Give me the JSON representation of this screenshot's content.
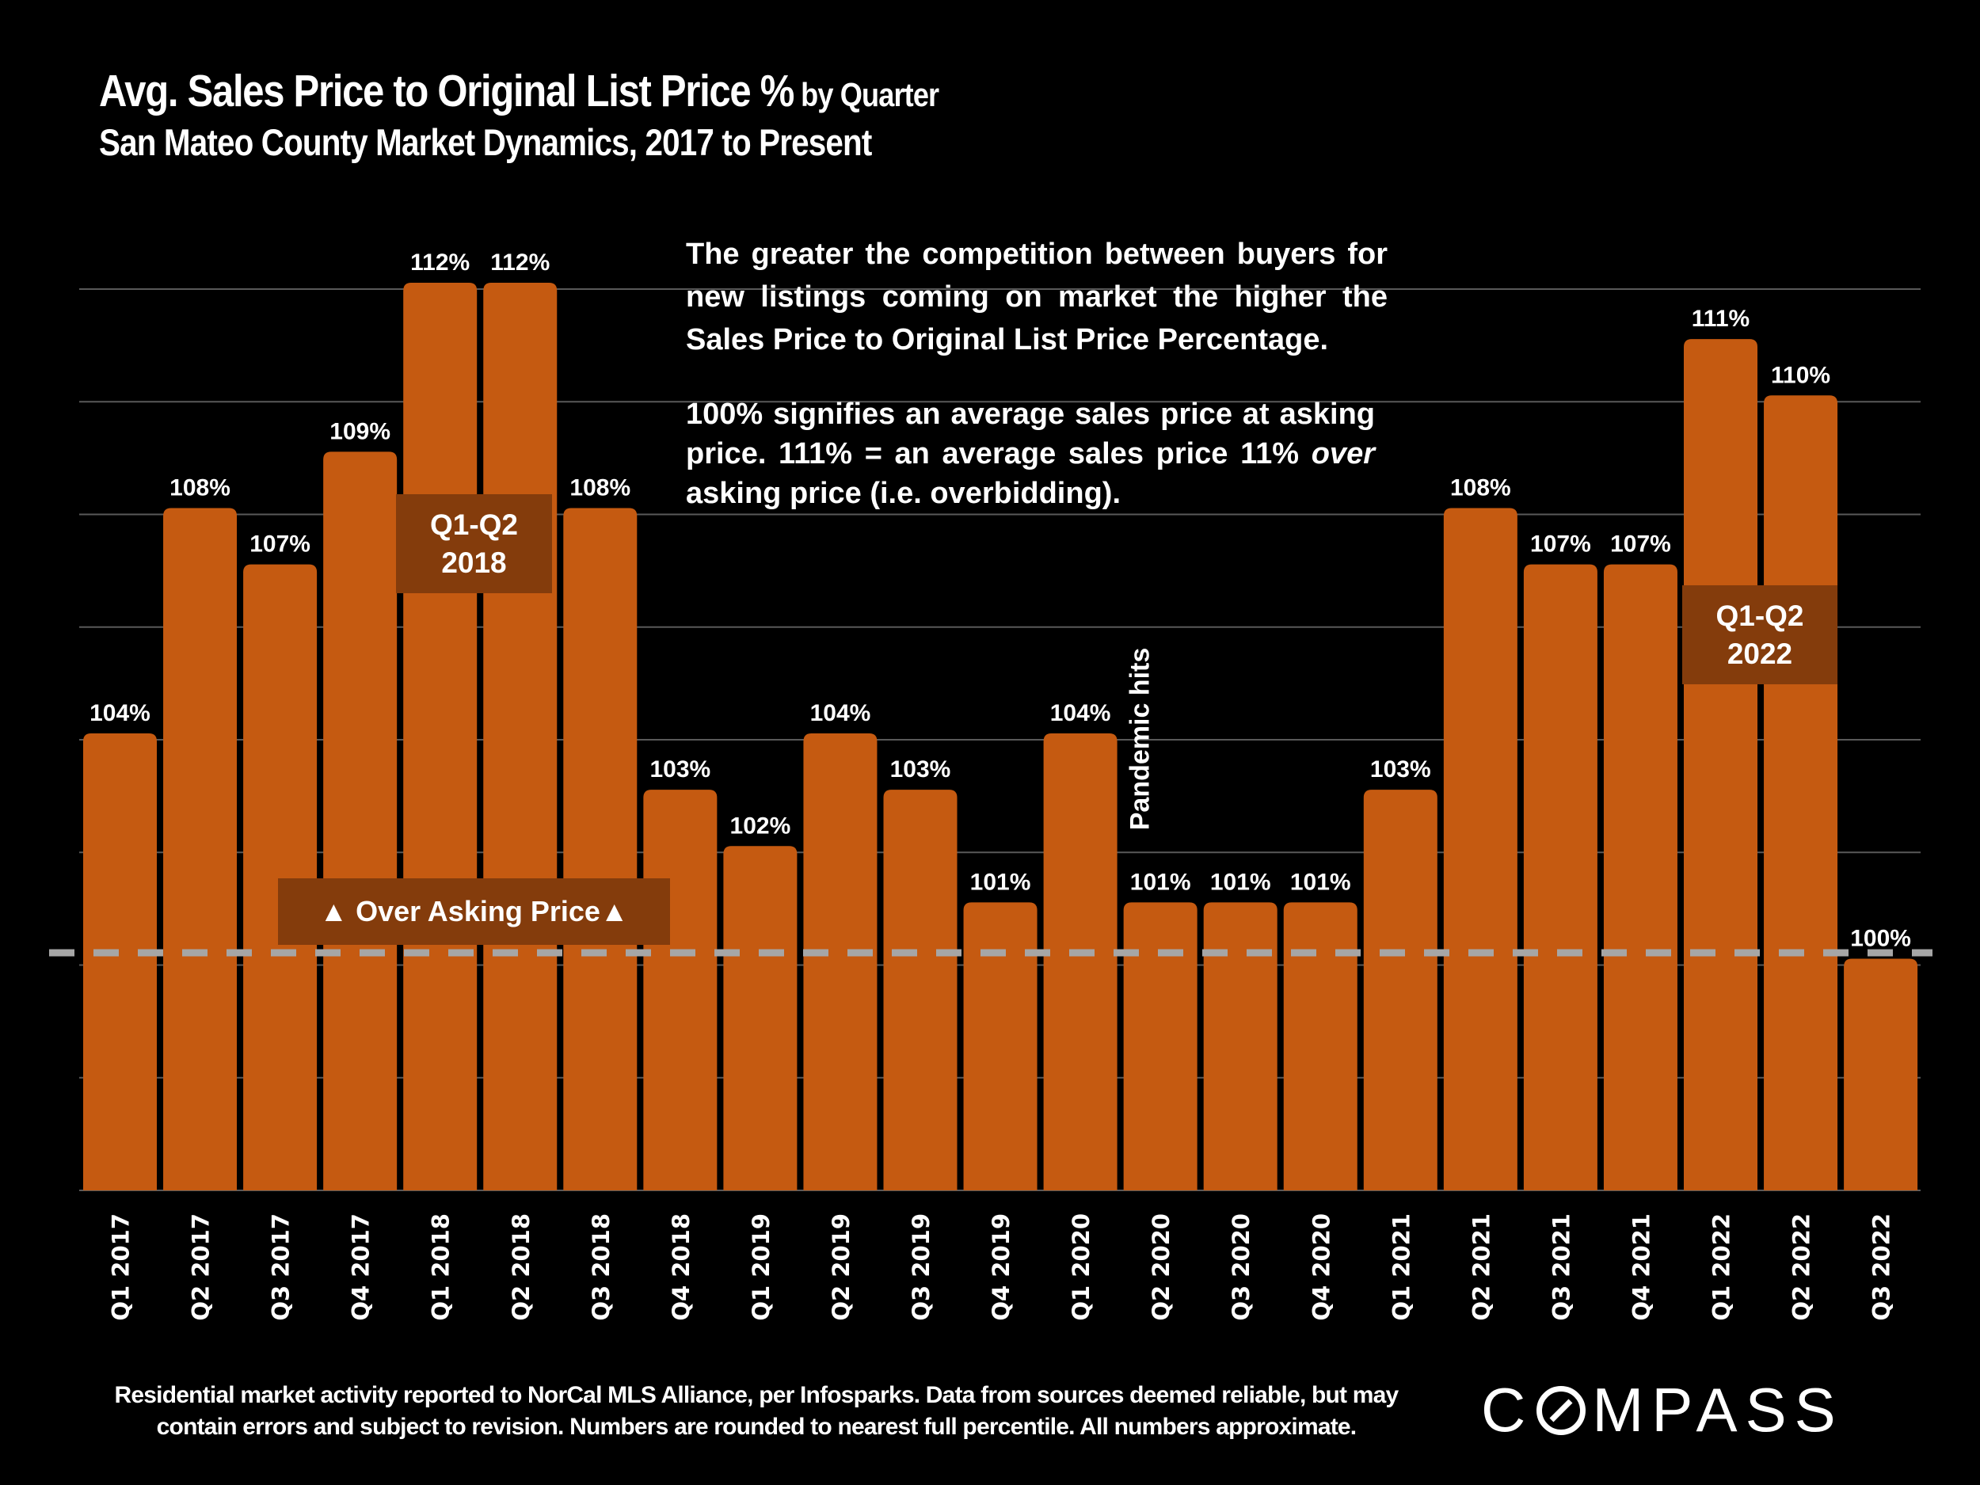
{
  "header": {
    "title_main": "Avg. Sales Price to Original List Price %",
    "title_suffix": " by Quarter",
    "subtitle": "San Mateo County Market Dynamics, 2017 to Present"
  },
  "annotations": {
    "note_1": "The greater the competition between buyers for new listings coming on market the higher the Sales Price to Original List Price Percentage.",
    "note_2_part1": "100% signifies an average sales price at asking price. 111% = an average sales price 11% ",
    "note_2_italic": "over",
    "note_2_part2": " asking price (i.e. overbidding).",
    "box_2018_line1": "Q1-Q2",
    "box_2018_line2": "2018",
    "box_2022_line1": "Q1-Q2",
    "box_2022_line2": "2022",
    "over_asking": "▲ Over Asking Price▲",
    "pandemic": "Pandemic hits"
  },
  "footer": {
    "disclaimer_line1": "Residential market activity reported to NorCal MLS Alliance, per Infosparks. Data from sources deemed reliable, but may",
    "disclaimer_line2": "contain errors and subject to revision. Numbers are rounded to nearest full percentile. All numbers  approximate.",
    "logo_pre": "C",
    "logo_post": "MPASS"
  },
  "colors": {
    "bar": "#c55a11",
    "highlight_box": "#843c0c",
    "reference_line": "#a6a6a6",
    "gridline": "#595959",
    "background": "#000000",
    "text": "#ffffff"
  },
  "chart_data": {
    "type": "bar",
    "title": "Avg. Sales Price to Original List Price % by Quarter",
    "subtitle": "San Mateo County Market Dynamics, 2017 to Present",
    "xlabel": "",
    "ylabel": "",
    "ylim": [
      96,
      112
    ],
    "y_gridlines": [
      96,
      98,
      100,
      102,
      104,
      106,
      108,
      110,
      112
    ],
    "y_tick_labels_shown": false,
    "grid": true,
    "legend": "none",
    "reference_line": {
      "value": 100,
      "style": "dashed"
    },
    "categories": [
      "Q1 2017",
      "Q2 2017",
      "Q3 2017",
      "Q4 2017",
      "Q1 2018",
      "Q2 2018",
      "Q3 2018",
      "Q4 2018",
      "Q1 2019",
      "Q2 2019",
      "Q3 2019",
      "Q4 2019",
      "Q1 2020",
      "Q2 2020",
      "Q3 2020",
      "Q4 2020",
      "Q1 2021",
      "Q2 2021",
      "Q3 2021",
      "Q4 2021",
      "Q1 2022",
      "Q2 2022",
      "Q3 2022"
    ],
    "values": [
      104,
      108,
      107,
      109,
      112,
      112,
      108,
      103,
      102,
      104,
      103,
      101,
      104,
      101,
      101,
      101,
      103,
      108,
      107,
      107,
      111,
      110,
      100
    ],
    "data_labels": [
      "104%",
      "108%",
      "107%",
      "109%",
      "112%",
      "112%",
      "108%",
      "103%",
      "102%",
      "104%",
      "103%",
      "101%",
      "104%",
      "101%",
      "101%",
      "101%",
      "103%",
      "108%",
      "107%",
      "107%",
      "111%",
      "110%",
      "100%"
    ]
  }
}
